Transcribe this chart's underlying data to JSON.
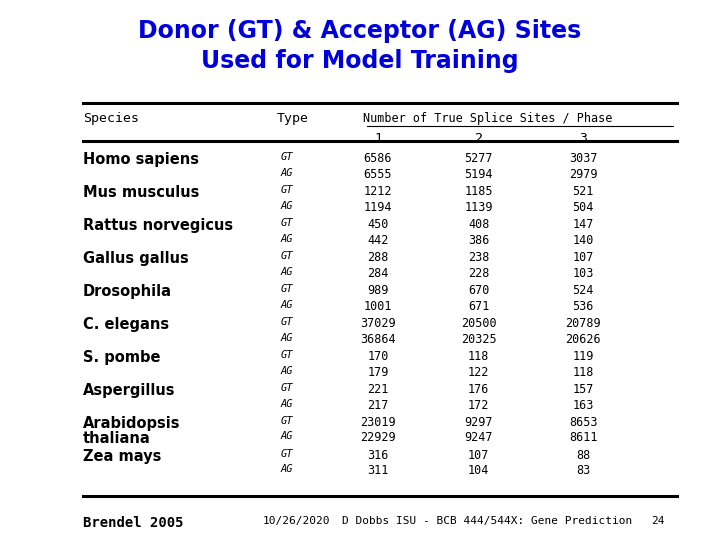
{
  "title_line1": "Donor (GT) & Acceptor (AG) Sites",
  "title_line2": "Used for Model Training",
  "title_color": "#0000dd",
  "bg_color": "#ffffff",
  "col_header_species": "Species",
  "col_header_type": "Type",
  "col_header_num": "Number of True Splice Sites / Phase",
  "col_phases": [
    "1",
    "2",
    "3"
  ],
  "rows": [
    {
      "species": "Homo sapiens",
      "gt": [
        "6586",
        "5277",
        "3037"
      ],
      "ag": [
        "6555",
        "5194",
        "2979"
      ]
    },
    {
      "species": "Mus musculus",
      "gt": [
        "1212",
        "1185",
        "521"
      ],
      "ag": [
        "1194",
        "1139",
        "504"
      ]
    },
    {
      "species": "Rattus norvegicus",
      "gt": [
        "450",
        "408",
        "147"
      ],
      "ag": [
        "442",
        "386",
        "140"
      ]
    },
    {
      "species": "Gallus gallus",
      "gt": [
        "288",
        "238",
        "107"
      ],
      "ag": [
        "284",
        "228",
        "103"
      ]
    },
    {
      "species": "Drosophila",
      "gt": [
        "989",
        "670",
        "524"
      ],
      "ag": [
        "1001",
        "671",
        "536"
      ]
    },
    {
      "species": "C. elegans",
      "gt": [
        "37029",
        "20500",
        "20789"
      ],
      "ag": [
        "36864",
        "20325",
        "20626"
      ]
    },
    {
      "species": "S. pombe",
      "gt": [
        "170",
        "118",
        "119"
      ],
      "ag": [
        "179",
        "122",
        "118"
      ]
    },
    {
      "species": "Aspergillus",
      "gt": [
        "221",
        "176",
        "157"
      ],
      "ag": [
        "217",
        "172",
        "163"
      ]
    },
    {
      "species": "Arabidopsis\nthaliana",
      "gt": [
        "23019",
        "9297",
        "8653"
      ],
      "ag": [
        "22929",
        "9247",
        "8611"
      ]
    },
    {
      "species": "Zea mays",
      "gt": [
        "316",
        "107",
        "88"
      ],
      "ag": [
        "311",
        "104",
        "83"
      ]
    }
  ],
  "footer_left": "Brendel 2005",
  "footer_center": "10/26/2020",
  "footer_right": "D Dobbs ISU - BCB 444/544X: Gene Prediction",
  "footer_page": "24"
}
